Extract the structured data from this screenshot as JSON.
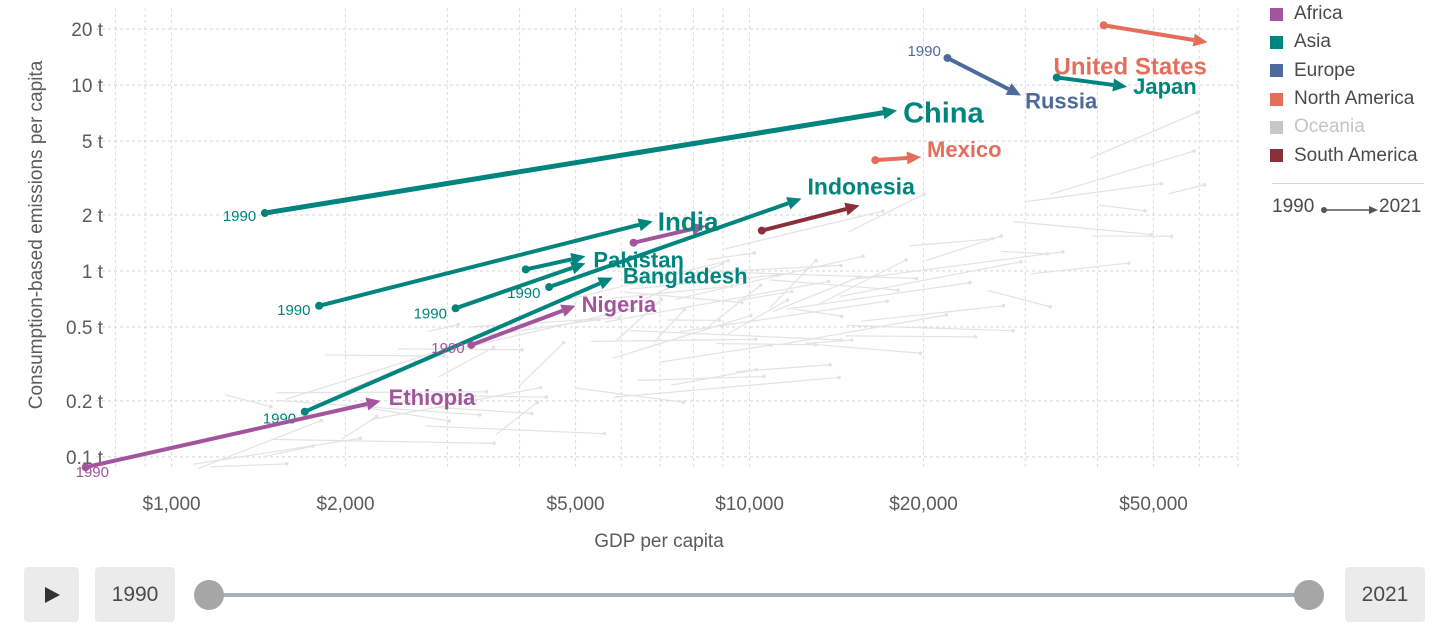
{
  "chart_data": {
    "type": "connected-scatter",
    "xlabel": "GDP per capita",
    "ylabel": "Consumption-based emissions per capita",
    "x_scale": "log",
    "y_scale": "log",
    "xlim": [
      740,
      70000
    ],
    "ylim": [
      0.085,
      26
    ],
    "x_ticks": [
      {
        "value": 1000,
        "label": "$1,000"
      },
      {
        "value": 2000,
        "label": "$2,000"
      },
      {
        "value": 5000,
        "label": "$5,000"
      },
      {
        "value": 10000,
        "label": "$10,000"
      },
      {
        "value": 20000,
        "label": "$20,000"
      },
      {
        "value": 50000,
        "label": "$50,000"
      }
    ],
    "y_ticks": [
      {
        "value": 0.1,
        "label": "0.1 t"
      },
      {
        "value": 0.2,
        "label": "0.2 t"
      },
      {
        "value": 0.5,
        "label": "0.5 t"
      },
      {
        "value": 1,
        "label": "1 t"
      },
      {
        "value": 2,
        "label": "2 t"
      },
      {
        "value": 5,
        "label": "5 t"
      },
      {
        "value": 10,
        "label": "10 t"
      },
      {
        "value": 20,
        "label": "20 t"
      }
    ],
    "grid": true,
    "legend_position": "right",
    "regions": [
      {
        "name": "Africa",
        "color": "#a2559c"
      },
      {
        "name": "Asia",
        "color": "#00847e"
      },
      {
        "name": "Europe",
        "color": "#4c6a9c"
      },
      {
        "name": "North America",
        "color": "#e56e5a"
      },
      {
        "name": "Oceania",
        "color": "#c7c7c7"
      },
      {
        "name": "South America",
        "color": "#883039"
      }
    ],
    "series": [
      {
        "label": "China",
        "region": "Asia",
        "start_label": "1990",
        "x": [
          1450,
          18000
        ],
        "y": [
          2.05,
          7.3
        ]
      },
      {
        "label": "India",
        "region": "Asia",
        "start_label": "1990",
        "x": [
          1800,
          6800
        ],
        "y": [
          0.65,
          1.85
        ]
      },
      {
        "label": "Pakistan",
        "region": "Asia",
        "start_label": "1990",
        "x": [
          3100,
          5200
        ],
        "y": [
          0.63,
          1.1
        ]
      },
      {
        "label": "Bangladesh",
        "region": "Asia",
        "start_label": "1990",
        "x": [
          1700,
          5800
        ],
        "y": [
          0.175,
          0.92
        ]
      },
      {
        "label": "Indonesia",
        "region": "Asia",
        "start_label": "1990",
        "x": [
          4500,
          12300
        ],
        "y": [
          0.82,
          2.45
        ]
      },
      {
        "label": "Japan",
        "region": "Asia",
        "start_label": "",
        "x": [
          34000,
          45000
        ],
        "y": [
          11,
          9.8
        ]
      },
      {
        "label": "Nigeria",
        "region": "Africa",
        "start_label": "1990",
        "x": [
          3300,
          5000
        ],
        "y": [
          0.4,
          0.65
        ]
      },
      {
        "label": "Ethiopia",
        "region": "Africa",
        "start_label": "1990",
        "x": [
          710,
          2300
        ],
        "y": [
          0.088,
          0.2
        ]
      },
      {
        "label": "Russia",
        "region": "Europe",
        "start_label": "1990",
        "x": [
          22000,
          29500
        ],
        "y": [
          14,
          8.8
        ]
      },
      {
        "label": "United States",
        "region": "North America",
        "start_label": "",
        "x": [
          41000,
          62000
        ],
        "y": [
          21,
          17
        ]
      },
      {
        "label": "Mexico",
        "region": "North America",
        "start_label": "",
        "x": [
          16500,
          19800
        ],
        "y": [
          3.95,
          4.1
        ]
      }
    ],
    "unlabeled_series": [
      {
        "region": "Asia",
        "x": [
          4100,
          5200
        ],
        "y": [
          1.02,
          1.2
        ]
      },
      {
        "region": "Africa",
        "x": [
          6300,
          8400
        ],
        "y": [
          1.42,
          1.75
        ]
      },
      {
        "region": "South America",
        "x": [
          10500,
          15500
        ],
        "y": [
          1.65,
          2.25
        ]
      }
    ]
  },
  "controls": {
    "play_icon": "play-icon",
    "start_year": "1990",
    "end_year": "2021",
    "slider_color": "#a3b1bd"
  },
  "time_key": {
    "start": "1990",
    "end": "2021"
  }
}
